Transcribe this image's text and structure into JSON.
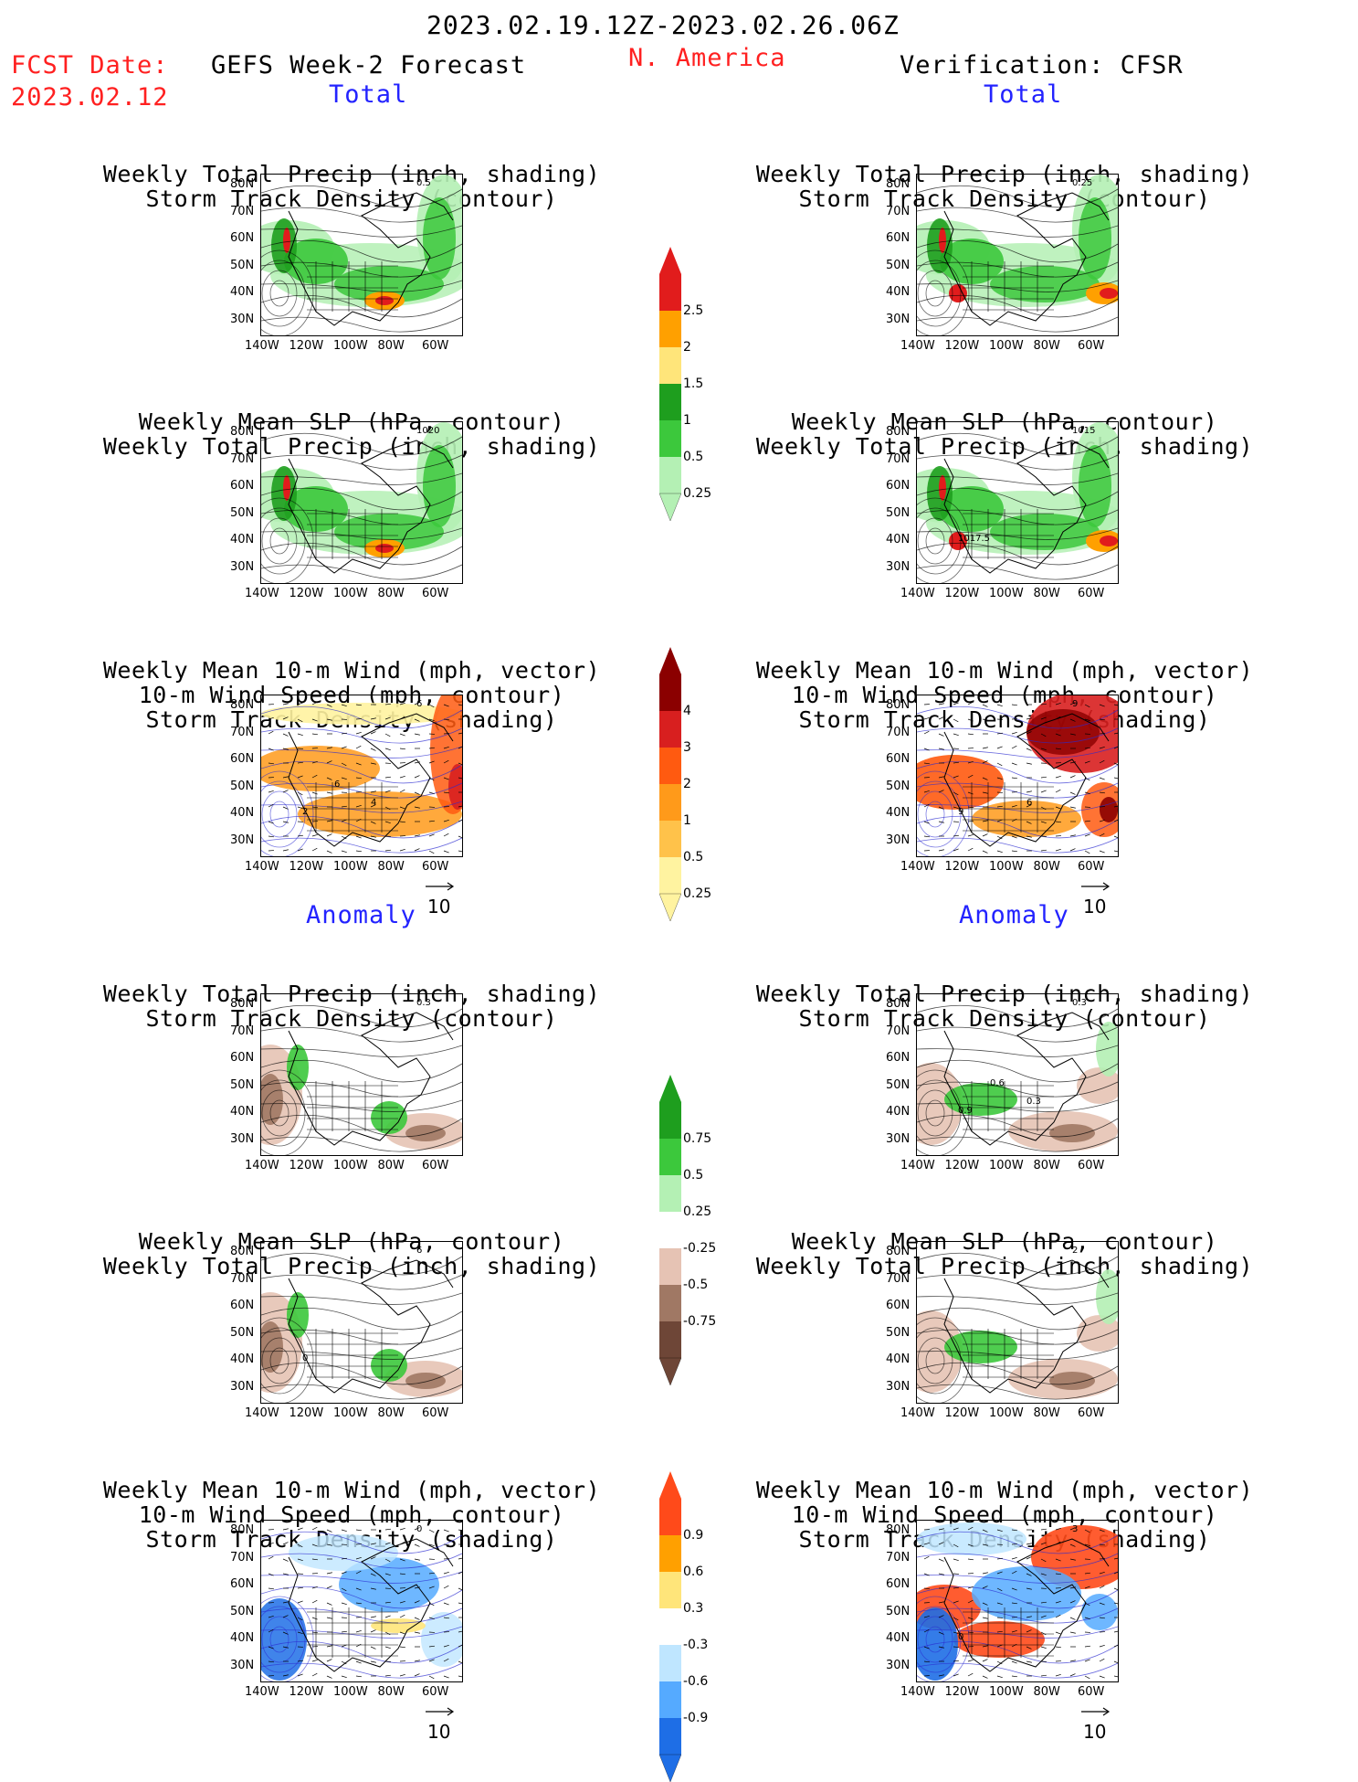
{
  "header": {
    "date_range": "2023.02.19.12Z-2023.02.26.06Z",
    "fcst_label": "FCST Date:",
    "fcst_date": "2023.02.12",
    "forecast_title": "GEFS Week-2 Forecast",
    "region": "N. America",
    "verification": "Verification: CFSR"
  },
  "section_labels": {
    "total": "Total",
    "anomaly": "Anomaly"
  },
  "panel_titles": {
    "precip_storm": [
      "Weekly Total Precip (inch, shading)",
      "Storm Track Density (contour)"
    ],
    "slp_precip": [
      "Weekly Mean SLP (hPa, contour)",
      "Weekly Total Precip (inch, shading)"
    ],
    "wind_storm": [
      "Weekly Mean 10-m Wind (mph, vector)",
      "10-m Wind Speed (mph, contour)",
      "Storm Track Density (shading)"
    ]
  },
  "axes": {
    "lat_ticks": [
      "80N",
      "70N",
      "60N",
      "50N",
      "40N",
      "30N"
    ],
    "lon_ticks": [
      "140W",
      "120W",
      "100W",
      "80W",
      "60W"
    ]
  },
  "vector_ref": "10",
  "map_labels": {
    "fcst_total_precip": [
      "0.5"
    ],
    "cfsr_total_precip": [
      "0.25"
    ],
    "fcst_total_slp": [
      "1020"
    ],
    "cfsr_total_slp": [
      "1015",
      "1017.5"
    ],
    "fcst_total_wind": [
      "6",
      "2",
      "4",
      "6"
    ],
    "cfsr_total_wind": [
      "9",
      "9",
      "6"
    ],
    "fcst_anom_precip": [
      "0.3"
    ],
    "cfsr_anom_precip": [
      "0.3",
      "0.9",
      "0.3",
      "0.6"
    ],
    "fcst_anom_slp": [
      "6",
      "0"
    ],
    "cfsr_anom_slp": [
      "2"
    ],
    "fcst_anom_wind": [
      "0"
    ],
    "cfsr_anom_wind": [
      "3",
      "0"
    ]
  },
  "colorbars": [
    {
      "labels": [
        "2.5",
        "2",
        "1.5",
        "1",
        "0.5",
        "0.25"
      ],
      "colors": [
        "#e11c1c",
        "#ffa000",
        "#ffe57a",
        "#1e9e1e",
        "#3cc83c",
        "#b4f0b4"
      ]
    },
    {
      "labels": [
        "4",
        "3",
        "2",
        "1",
        "0.5",
        "0.25"
      ],
      "colors": [
        "#8b0000",
        "#d81f1f",
        "#ff5a10",
        "#ff9a1a",
        "#ffc24a",
        "#fff3a0"
      ]
    },
    {
      "labels": [
        "0.75",
        "0.5",
        "0.25",
        "-0.25",
        "-0.5",
        "-0.75"
      ],
      "colors": [
        "#1e9e1e",
        "#3cc83c",
        "#b4f0b4",
        "#ffffff",
        "#e6c3b4",
        "#a07864",
        "#6e4637"
      ]
    },
    {
      "labels": [
        "0.9",
        "0.6",
        "0.3",
        "-0.3",
        "-0.6",
        "-0.9"
      ],
      "colors": [
        "#ff4a1a",
        "#ffa000",
        "#ffe57a",
        "#ffffff",
        "#bfe6ff",
        "#55aaff",
        "#1e6ee6"
      ]
    }
  ]
}
